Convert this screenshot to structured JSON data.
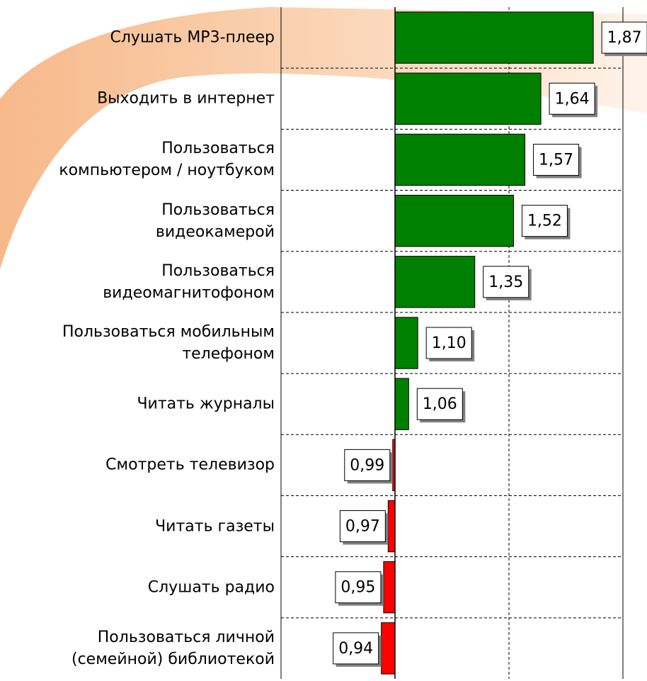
{
  "chart_data": {
    "type": "hbar",
    "categories": [
      "Слушать MP3-плеер",
      "Выходить в интернет",
      "Пользоваться\nкомпьютером / ноутбуком",
      "Пользоваться\nвидеокамерой",
      "Пользоваться\nвидеомагнитофоном",
      "Пользоваться мобильным\nтелефоном",
      "Читать журналы",
      "Смотреть телевизор",
      "Читать газеты",
      "Слушать радио",
      "Пользоваться личной\n(семейной) библиотекой"
    ],
    "values": [
      1.87,
      1.64,
      1.57,
      1.52,
      1.35,
      1.1,
      1.06,
      0.99,
      0.97,
      0.95,
      0.94
    ],
    "value_labels": [
      "1,87",
      "1,64",
      "1,57",
      "1,52",
      "1,35",
      "1,10",
      "1,06",
      "0,99",
      "0,97",
      "0,95",
      "0,94"
    ],
    "baseline": 1,
    "color_above": "#008000",
    "color_below": "#ff0000",
    "xlim": [
      0.5,
      2.0
    ],
    "xticks": [
      0.5,
      1.0,
      1.5,
      2.0
    ],
    "grid": true
  }
}
